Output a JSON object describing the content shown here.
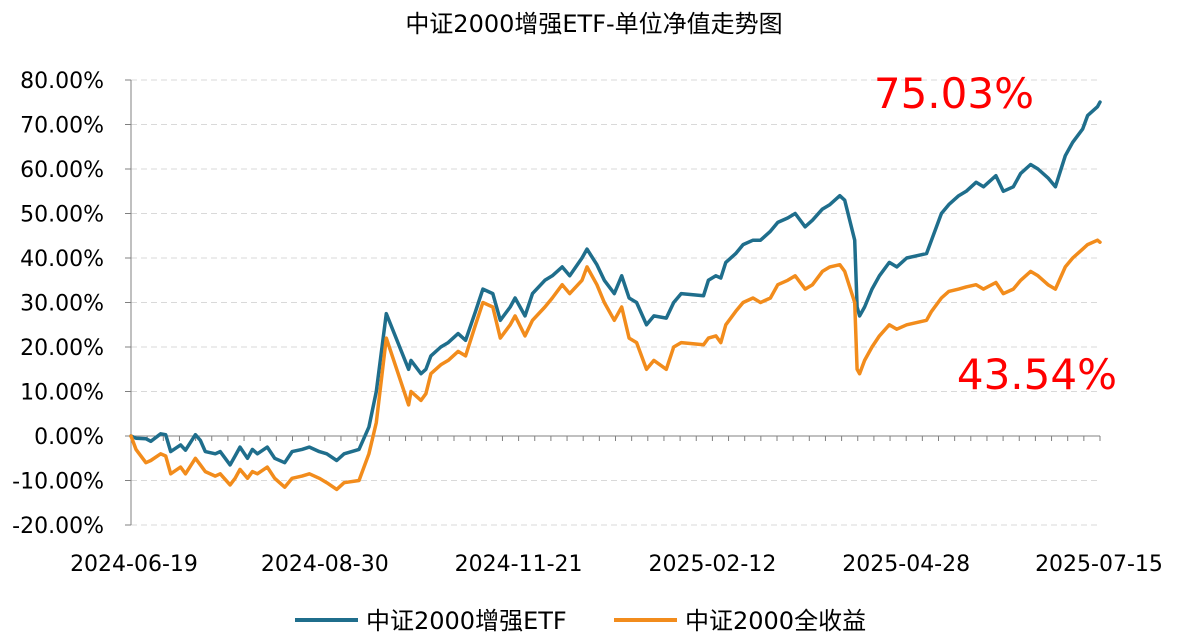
{
  "chart_data": {
    "type": "line",
    "title": "中证2000增强ETF-单位净值走势图",
    "xlabel": "",
    "ylabel": "",
    "x_ticks": [
      "2024-06-19",
      "2024-08-30",
      "2024-11-21",
      "2025-02-12",
      "2025-04-28",
      "2025-07-15"
    ],
    "y_ticks": [
      "-20.00%",
      "-10.00%",
      "0.00%",
      "10.00%",
      "20.00%",
      "30.00%",
      "40.00%",
      "50.00%",
      "60.00%",
      "70.00%",
      "80.00%"
    ],
    "ylim": [
      -20,
      80
    ],
    "grid": "horizontal-dashed",
    "legend_position": "bottom",
    "series": [
      {
        "name": "中证2000增强ETF",
        "color": "#1f6e8c",
        "end_label": "75.03%",
        "points": [
          [
            "2024-06-19",
            0
          ],
          [
            "2024-06-21",
            -0.5
          ],
          [
            "2024-06-25",
            -0.6
          ],
          [
            "2024-06-27",
            -1.2
          ],
          [
            "2024-07-01",
            0.5
          ],
          [
            "2024-07-03",
            0.3
          ],
          [
            "2024-07-05",
            -3.5
          ],
          [
            "2024-07-09",
            -2.0
          ],
          [
            "2024-07-11",
            -3.2
          ],
          [
            "2024-07-15",
            0.3
          ],
          [
            "2024-07-17",
            -1.0
          ],
          [
            "2024-07-19",
            -3.5
          ],
          [
            "2024-07-23",
            -4.0
          ],
          [
            "2024-07-25",
            -3.5
          ],
          [
            "2024-07-29",
            -6.5
          ],
          [
            "2024-07-31",
            -4.5
          ],
          [
            "2024-08-02",
            -2.5
          ],
          [
            "2024-08-05",
            -5.0
          ],
          [
            "2024-08-07",
            -3.0
          ],
          [
            "2024-08-09",
            -4.0
          ],
          [
            "2024-08-13",
            -2.5
          ],
          [
            "2024-08-16",
            -5.0
          ],
          [
            "2024-08-20",
            -6.0
          ],
          [
            "2024-08-23",
            -3.5
          ],
          [
            "2024-08-27",
            -3.0
          ],
          [
            "2024-08-30",
            -2.5
          ],
          [
            "2024-09-03",
            -3.5
          ],
          [
            "2024-09-06",
            -4.0
          ],
          [
            "2024-09-10",
            -5.5
          ],
          [
            "2024-09-13",
            -4.0
          ],
          [
            "2024-09-19",
            -3.0
          ],
          [
            "2024-09-23",
            2.0
          ],
          [
            "2024-09-26",
            10.0
          ],
          [
            "2024-09-30",
            27.5
          ],
          [
            "2024-10-09",
            15.0
          ],
          [
            "2024-10-10",
            17.0
          ],
          [
            "2024-10-14",
            14.0
          ],
          [
            "2024-10-16",
            15.0
          ],
          [
            "2024-10-18",
            18.0
          ],
          [
            "2024-10-22",
            20.0
          ],
          [
            "2024-10-25",
            21.0
          ],
          [
            "2024-10-29",
            23.0
          ],
          [
            "2024-11-01",
            21.5
          ],
          [
            "2024-11-05",
            28.0
          ],
          [
            "2024-11-08",
            33.0
          ],
          [
            "2024-11-12",
            32.0
          ],
          [
            "2024-11-15",
            26.0
          ],
          [
            "2024-11-19",
            29.0
          ],
          [
            "2024-11-21",
            31.0
          ],
          [
            "2024-11-25",
            27.0
          ],
          [
            "2024-11-28",
            32.0
          ],
          [
            "2024-12-03",
            35.0
          ],
          [
            "2024-12-06",
            36.0
          ],
          [
            "2024-12-10",
            38.0
          ],
          [
            "2024-12-13",
            36.0
          ],
          [
            "2024-12-18",
            40.0
          ],
          [
            "2024-12-20",
            42.0
          ],
          [
            "2024-12-24",
            38.5
          ],
          [
            "2024-12-27",
            35.0
          ],
          [
            "2024-12-31",
            32.0
          ],
          [
            "2025-01-03",
            36.0
          ],
          [
            "2025-01-06",
            31.0
          ],
          [
            "2025-01-09",
            30.0
          ],
          [
            "2025-01-13",
            25.0
          ],
          [
            "2025-01-16",
            27.0
          ],
          [
            "2025-01-21",
            26.5
          ],
          [
            "2025-01-24",
            30.0
          ],
          [
            "2025-01-27",
            32.0
          ],
          [
            "2025-02-05",
            31.5
          ],
          [
            "2025-02-07",
            35.0
          ],
          [
            "2025-02-10",
            36.0
          ],
          [
            "2025-02-12",
            35.5
          ],
          [
            "2025-02-14",
            39.0
          ],
          [
            "2025-02-18",
            41.0
          ],
          [
            "2025-02-21",
            43.0
          ],
          [
            "2025-02-25",
            44.0
          ],
          [
            "2025-02-28",
            44.0
          ],
          [
            "2025-03-04",
            46.0
          ],
          [
            "2025-03-07",
            48.0
          ],
          [
            "2025-03-11",
            49.0
          ],
          [
            "2025-03-14",
            50.0
          ],
          [
            "2025-03-18",
            47.0
          ],
          [
            "2025-03-21",
            48.5
          ],
          [
            "2025-03-25",
            51.0
          ],
          [
            "2025-03-28",
            52.0
          ],
          [
            "2025-04-01",
            54.0
          ],
          [
            "2025-04-03",
            53.0
          ],
          [
            "2025-04-07",
            44.0
          ],
          [
            "2025-04-08",
            29.0
          ],
          [
            "2025-04-09",
            27.0
          ],
          [
            "2025-04-11",
            29.0
          ],
          [
            "2025-04-14",
            33.0
          ],
          [
            "2025-04-17",
            36.0
          ],
          [
            "2025-04-21",
            39.0
          ],
          [
            "2025-04-24",
            38.0
          ],
          [
            "2025-04-28",
            40.0
          ],
          [
            "2025-05-06",
            41.0
          ],
          [
            "2025-05-08",
            44.0
          ],
          [
            "2025-05-12",
            50.0
          ],
          [
            "2025-05-15",
            52.0
          ],
          [
            "2025-05-19",
            54.0
          ],
          [
            "2025-05-22",
            55.0
          ],
          [
            "2025-05-26",
            57.0
          ],
          [
            "2025-05-29",
            56.0
          ],
          [
            "2025-06-03",
            58.5
          ],
          [
            "2025-06-06",
            55.0
          ],
          [
            "2025-06-10",
            56.0
          ],
          [
            "2025-06-13",
            59.0
          ],
          [
            "2025-06-17",
            61.0
          ],
          [
            "2025-06-20",
            60.0
          ],
          [
            "2025-06-24",
            58.0
          ],
          [
            "2025-06-27",
            56.0
          ],
          [
            "2025-07-01",
            63.0
          ],
          [
            "2025-07-04",
            66.0
          ],
          [
            "2025-07-08",
            69.0
          ],
          [
            "2025-07-10",
            72.0
          ],
          [
            "2025-07-14",
            74.0
          ],
          [
            "2025-07-15",
            75.03
          ]
        ]
      },
      {
        "name": "中证2000全收益",
        "color": "#f28c1c",
        "end_label": "43.54%",
        "points": [
          [
            "2024-06-19",
            0
          ],
          [
            "2024-06-21",
            -3.0
          ],
          [
            "2024-06-25",
            -6.0
          ],
          [
            "2024-06-27",
            -5.5
          ],
          [
            "2024-07-01",
            -4.0
          ],
          [
            "2024-07-03",
            -4.5
          ],
          [
            "2024-07-05",
            -8.5
          ],
          [
            "2024-07-09",
            -7.0
          ],
          [
            "2024-07-11",
            -8.5
          ],
          [
            "2024-07-15",
            -5.0
          ],
          [
            "2024-07-17",
            -6.5
          ],
          [
            "2024-07-19",
            -8.0
          ],
          [
            "2024-07-23",
            -9.0
          ],
          [
            "2024-07-25",
            -8.5
          ],
          [
            "2024-07-29",
            -11.0
          ],
          [
            "2024-07-31",
            -9.5
          ],
          [
            "2024-08-02",
            -7.5
          ],
          [
            "2024-08-05",
            -9.5
          ],
          [
            "2024-08-07",
            -8.0
          ],
          [
            "2024-08-09",
            -8.5
          ],
          [
            "2024-08-13",
            -7.0
          ],
          [
            "2024-08-16",
            -9.5
          ],
          [
            "2024-08-20",
            -11.5
          ],
          [
            "2024-08-23",
            -9.5
          ],
          [
            "2024-08-27",
            -9.0
          ],
          [
            "2024-08-30",
            -8.5
          ],
          [
            "2024-09-03",
            -9.5
          ],
          [
            "2024-09-06",
            -10.5
          ],
          [
            "2024-09-10",
            -12.0
          ],
          [
            "2024-09-13",
            -10.5
          ],
          [
            "2024-09-19",
            -10.0
          ],
          [
            "2024-09-23",
            -4.0
          ],
          [
            "2024-09-26",
            3.0
          ],
          [
            "2024-09-30",
            22.0
          ],
          [
            "2024-10-09",
            7.0
          ],
          [
            "2024-10-10",
            10.0
          ],
          [
            "2024-10-14",
            8.0
          ],
          [
            "2024-10-16",
            9.5
          ],
          [
            "2024-10-18",
            14.0
          ],
          [
            "2024-10-22",
            16.0
          ],
          [
            "2024-10-25",
            17.0
          ],
          [
            "2024-10-29",
            19.0
          ],
          [
            "2024-11-01",
            18.0
          ],
          [
            "2024-11-05",
            25.0
          ],
          [
            "2024-11-08",
            30.0
          ],
          [
            "2024-11-12",
            29.0
          ],
          [
            "2024-11-15",
            22.0
          ],
          [
            "2024-11-19",
            25.0
          ],
          [
            "2024-11-21",
            27.0
          ],
          [
            "2024-11-25",
            22.5
          ],
          [
            "2024-11-28",
            26.0
          ],
          [
            "2024-12-03",
            29.0
          ],
          [
            "2024-12-06",
            31.0
          ],
          [
            "2024-12-10",
            34.0
          ],
          [
            "2024-12-13",
            32.0
          ],
          [
            "2024-12-18",
            35.0
          ],
          [
            "2024-12-20",
            38.0
          ],
          [
            "2024-12-24",
            34.0
          ],
          [
            "2024-12-27",
            30.0
          ],
          [
            "2024-12-31",
            26.0
          ],
          [
            "2025-01-03",
            29.0
          ],
          [
            "2025-01-06",
            22.0
          ],
          [
            "2025-01-09",
            21.0
          ],
          [
            "2025-01-13",
            15.0
          ],
          [
            "2025-01-16",
            17.0
          ],
          [
            "2025-01-21",
            15.0
          ],
          [
            "2025-01-24",
            20.0
          ],
          [
            "2025-01-27",
            21.0
          ],
          [
            "2025-02-05",
            20.5
          ],
          [
            "2025-02-07",
            22.0
          ],
          [
            "2025-02-10",
            22.5
          ],
          [
            "2025-02-12",
            21.0
          ],
          [
            "2025-02-14",
            25.0
          ],
          [
            "2025-02-18",
            28.0
          ],
          [
            "2025-02-21",
            30.0
          ],
          [
            "2025-02-25",
            31.0
          ],
          [
            "2025-02-28",
            30.0
          ],
          [
            "2025-03-04",
            31.0
          ],
          [
            "2025-03-07",
            34.0
          ],
          [
            "2025-03-11",
            35.0
          ],
          [
            "2025-03-14",
            36.0
          ],
          [
            "2025-03-18",
            33.0
          ],
          [
            "2025-03-21",
            34.0
          ],
          [
            "2025-03-25",
            37.0
          ],
          [
            "2025-03-28",
            38.0
          ],
          [
            "2025-04-01",
            38.5
          ],
          [
            "2025-04-03",
            37.0
          ],
          [
            "2025-04-07",
            30.0
          ],
          [
            "2025-04-08",
            15.0
          ],
          [
            "2025-04-09",
            14.0
          ],
          [
            "2025-04-11",
            17.0
          ],
          [
            "2025-04-14",
            20.0
          ],
          [
            "2025-04-17",
            22.5
          ],
          [
            "2025-04-21",
            25.0
          ],
          [
            "2025-04-24",
            24.0
          ],
          [
            "2025-04-28",
            25.0
          ],
          [
            "2025-05-06",
            26.0
          ],
          [
            "2025-05-08",
            28.0
          ],
          [
            "2025-05-12",
            31.0
          ],
          [
            "2025-05-15",
            32.5
          ],
          [
            "2025-05-19",
            33.0
          ],
          [
            "2025-05-22",
            33.5
          ],
          [
            "2025-05-26",
            34.0
          ],
          [
            "2025-05-29",
            33.0
          ],
          [
            "2025-06-03",
            34.5
          ],
          [
            "2025-06-06",
            32.0
          ],
          [
            "2025-06-10",
            33.0
          ],
          [
            "2025-06-13",
            35.0
          ],
          [
            "2025-06-17",
            37.0
          ],
          [
            "2025-06-20",
            36.0
          ],
          [
            "2025-06-24",
            34.0
          ],
          [
            "2025-06-27",
            33.0
          ],
          [
            "2025-07-01",
            38.0
          ],
          [
            "2025-07-04",
            40.0
          ],
          [
            "2025-07-08",
            42.0
          ],
          [
            "2025-07-10",
            43.0
          ],
          [
            "2025-07-14",
            44.0
          ],
          [
            "2025-07-15",
            43.54
          ]
        ]
      }
    ]
  }
}
